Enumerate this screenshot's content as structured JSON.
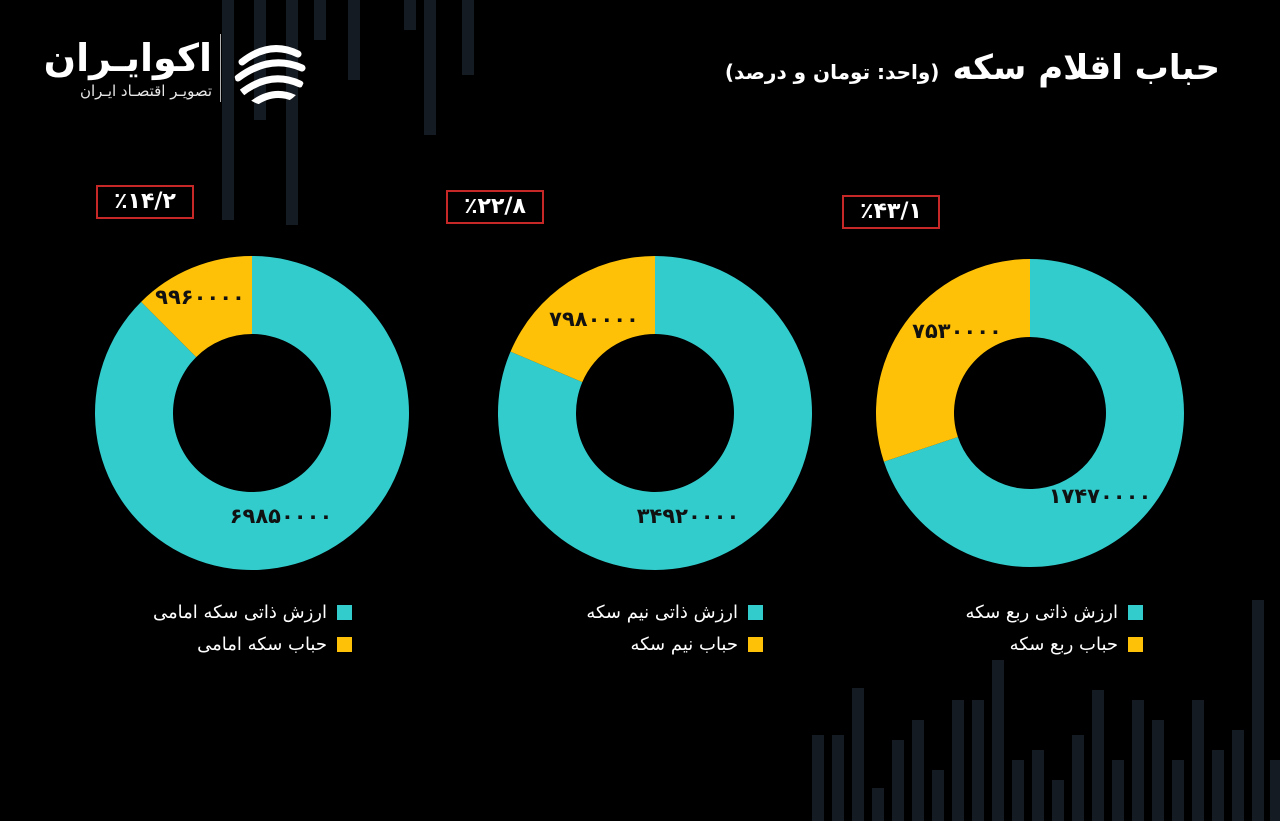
{
  "title": "حباب اقلام سکه",
  "subtitle": "(واحد: تومان و درصد)",
  "logo": {
    "name": "اکوایـران",
    "tagline": "تصویـر اقتصـاد ایـران"
  },
  "colors": {
    "background": "#000000",
    "intrinsic": "#33cccc",
    "bubble": "#ffc107",
    "percent_border": "#c62828",
    "decor_bars": "#151b22"
  },
  "chart_data": [
    {
      "type": "pie",
      "style": "donut",
      "percent_label": "٪۱۴/۲",
      "slices": [
        {
          "label": "ارزش ذاتی سکه امامی",
          "value": 69850000,
          "value_label": "۶۹۸۵۰۰۰۰",
          "color": "#33cccc"
        },
        {
          "label": "حباب سکه امامی",
          "value": 9960000,
          "value_label": "۹۹۶۰۰۰۰",
          "color": "#ffc107"
        }
      ],
      "legend": [
        "ارزش ذاتی سکه امامی",
        "حباب سکه امامی"
      ]
    },
    {
      "type": "pie",
      "style": "donut",
      "percent_label": "٪۲۲/۸",
      "slices": [
        {
          "label": "ارزش ذاتی نیم سکه",
          "value": 34920000,
          "value_label": "۳۴۹۲۰۰۰۰",
          "color": "#33cccc"
        },
        {
          "label": "حباب نیم سکه",
          "value": 7980000,
          "value_label": "۷۹۸۰۰۰۰",
          "color": "#ffc107"
        }
      ],
      "legend": [
        "ارزش ذاتی نیم سکه",
        "حباب نیم سکه"
      ]
    },
    {
      "type": "pie",
      "style": "donut",
      "percent_label": "٪۴۳/۱",
      "slices": [
        {
          "label": "ارزش ذاتی ربع سکه",
          "value": 17470000,
          "value_label": "۱۷۴۷۰۰۰۰",
          "color": "#33cccc"
        },
        {
          "label": "حباب ربع سکه",
          "value": 7530000,
          "value_label": "۷۵۳۰۰۰۰",
          "color": "#ffc107"
        }
      ],
      "legend": [
        "ارزش ذاتی ربع سکه",
        "حباب ربع سکه"
      ]
    }
  ]
}
